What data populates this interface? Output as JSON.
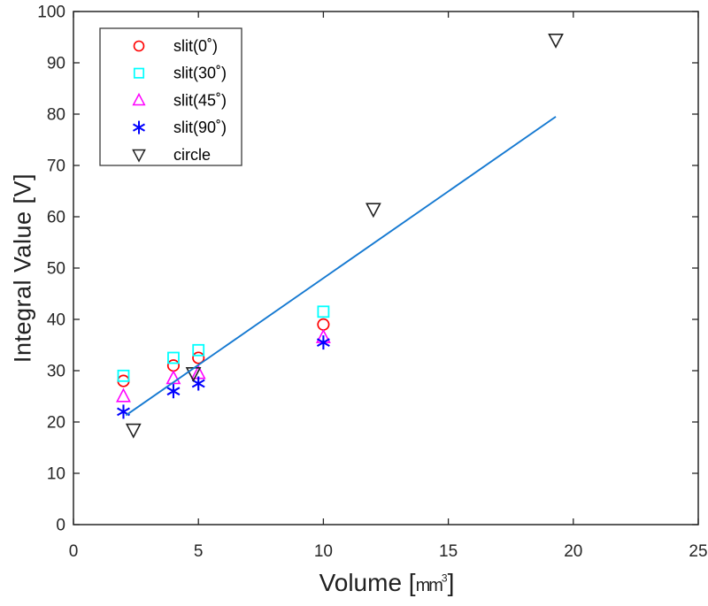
{
  "figure": {
    "background": "#ffffff",
    "axis_color": "#262626",
    "text_color": "#202020"
  },
  "labels": {
    "xlabel_prefix": "Volume [",
    "xlabel_unit": "mm",
    "xlabel_sup": "3",
    "xlabel_suffix": "]"
  },
  "chart_data": {
    "type": "scatter",
    "title": "",
    "xlabel": "Volume [mm³]",
    "ylabel": "Integral Value [V]",
    "xlim": [
      0,
      25
    ],
    "ylim": [
      0,
      100
    ],
    "x_ticks": [
      0,
      5,
      10,
      15,
      20,
      25
    ],
    "y_ticks": [
      0,
      10,
      20,
      30,
      40,
      50,
      60,
      70,
      80,
      90,
      100
    ],
    "grid": false,
    "box": true,
    "legend_position": "top-left-inside",
    "series": [
      {
        "name": "slit(0˚)",
        "marker": "circle",
        "color": "#ff0000",
        "points": [
          [
            2,
            28
          ],
          [
            4,
            31
          ],
          [
            5,
            32.5
          ],
          [
            10,
            39
          ]
        ]
      },
      {
        "name": "slit(30˚)",
        "marker": "square",
        "color": "#00ffff",
        "points": [
          [
            2,
            29
          ],
          [
            4,
            32.5
          ],
          [
            5,
            34
          ],
          [
            10,
            41.5
          ]
        ]
      },
      {
        "name": "slit(45˚)",
        "marker": "triangle-up",
        "color": "#ff00ff",
        "points": [
          [
            2,
            25
          ],
          [
            4,
            28.5
          ],
          [
            5,
            29.5
          ],
          [
            10,
            36.5
          ]
        ]
      },
      {
        "name": "slit(90˚)",
        "marker": "asterisk",
        "color": "#0000ff",
        "points": [
          [
            2,
            22
          ],
          [
            4,
            26
          ],
          [
            5,
            27.5
          ],
          [
            10,
            35.5
          ]
        ]
      },
      {
        "name": "circle",
        "marker": "triangle-down",
        "color": "#222222",
        "points": [
          [
            2.4,
            18.5
          ],
          [
            4.8,
            29.5
          ],
          [
            12,
            61.5
          ],
          [
            19.3,
            94.5
          ]
        ]
      }
    ],
    "fit_line": {
      "color": "#1579d1",
      "from": [
        2.1,
        21.3
      ],
      "to": [
        19.3,
        79.5
      ]
    }
  }
}
